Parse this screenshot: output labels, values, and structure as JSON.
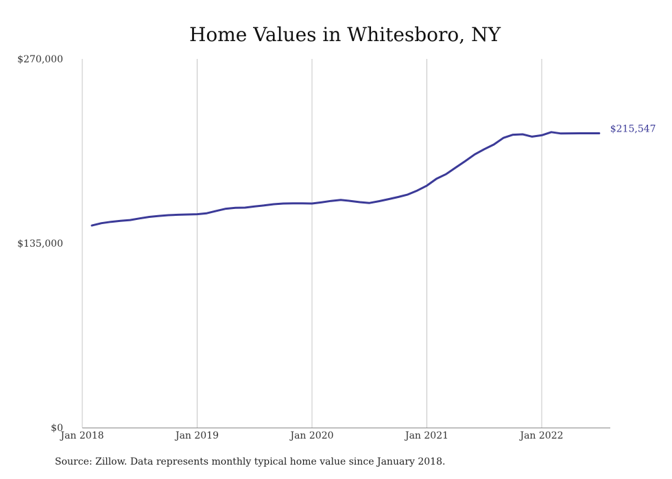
{
  "colors": {
    "line": "#3b3a98",
    "gridline": "#c4c4c4",
    "axis": "#888888",
    "background": "#ffffff"
  },
  "chart_data": {
    "type": "line",
    "title": "Home Values in Whitesboro, NY",
    "xlabel": "",
    "ylabel": "",
    "ylim": [
      0,
      270000
    ],
    "yticks": [
      {
        "value": 0,
        "label": "$0"
      },
      {
        "value": 135000,
        "label": "$135,000"
      },
      {
        "value": 270000,
        "label": "$270,000"
      }
    ],
    "xticks": [
      {
        "value": "2018-01",
        "label": "Jan 2018"
      },
      {
        "value": "2019-01",
        "label": "Jan 2019"
      },
      {
        "value": "2020-01",
        "label": "Jan 2020"
      },
      {
        "value": "2021-01",
        "label": "Jan 2021"
      },
      {
        "value": "2022-01",
        "label": "Jan 2022"
      }
    ],
    "grid": "vertical",
    "legend": "none",
    "end_label": "$215,547",
    "x": [
      "2018-02",
      "2018-03",
      "2018-04",
      "2018-05",
      "2018-06",
      "2018-07",
      "2018-08",
      "2018-09",
      "2018-10",
      "2018-11",
      "2018-12",
      "2019-01",
      "2019-02",
      "2019-03",
      "2019-04",
      "2019-05",
      "2019-06",
      "2019-07",
      "2019-08",
      "2019-09",
      "2019-10",
      "2019-11",
      "2019-12",
      "2020-01",
      "2020-02",
      "2020-03",
      "2020-04",
      "2020-05",
      "2020-06",
      "2020-07",
      "2020-08",
      "2020-09",
      "2020-10",
      "2020-11",
      "2020-12",
      "2021-01",
      "2021-02",
      "2021-03",
      "2021-04",
      "2021-05",
      "2021-06",
      "2021-07",
      "2021-08",
      "2021-09",
      "2021-10",
      "2021-11",
      "2021-12",
      "2022-01",
      "2022-02",
      "2022-03",
      "2022-04",
      "2022-05",
      "2022-06",
      "2022-07"
    ],
    "series": [
      {
        "values": [
          148000,
          149700,
          150700,
          151400,
          152000,
          153200,
          154300,
          155000,
          155600,
          155900,
          156100,
          156300,
          157000,
          158700,
          160300,
          161000,
          161100,
          162000,
          162700,
          163600,
          164100,
          164200,
          164200,
          164100,
          165000,
          166000,
          166700,
          166000,
          165100,
          164500,
          165800,
          167300,
          168900,
          170700,
          173600,
          177200,
          182200,
          185600,
          190400,
          195100,
          200100,
          203900,
          207300,
          212200,
          214500,
          214800,
          213100,
          214100,
          216400,
          215400,
          215500,
          215547,
          215547,
          215547
        ]
      }
    ]
  },
  "footer": {
    "source": "Source: Zillow. Data represents monthly typical home value since January 2018."
  }
}
